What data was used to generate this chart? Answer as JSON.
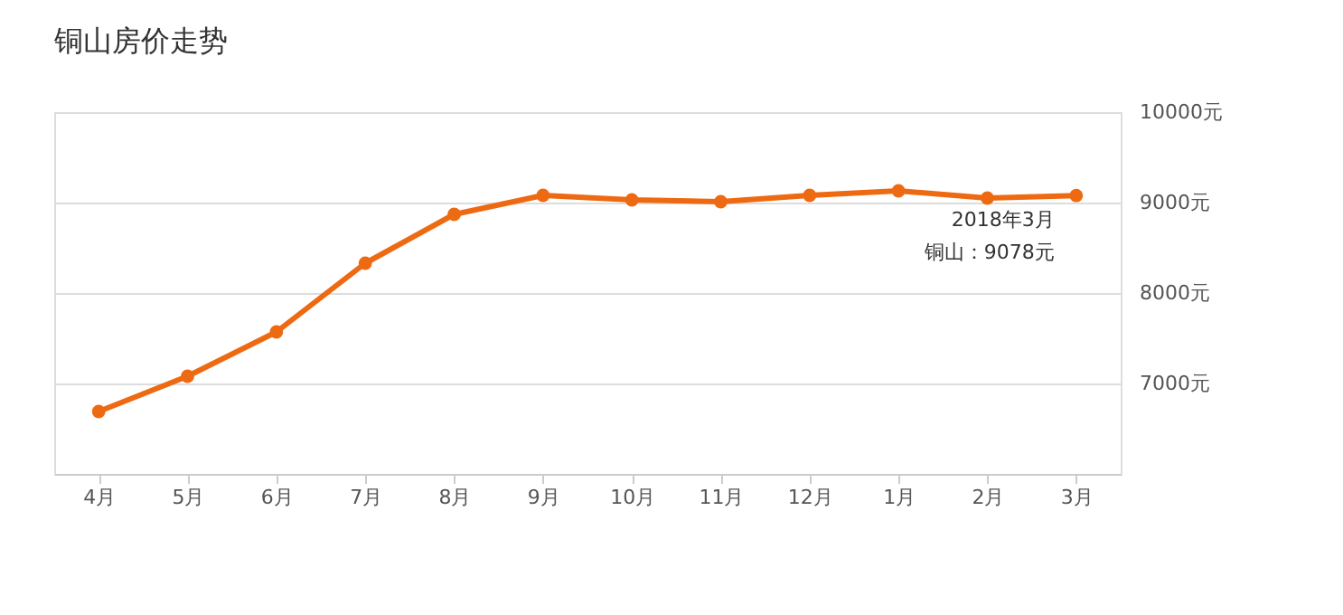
{
  "chart_data": {
    "type": "line",
    "title": "铜山房价走势",
    "categories": [
      "4月",
      "5月",
      "6月",
      "7月",
      "8月",
      "9月",
      "10月",
      "11月",
      "12月",
      "1月",
      "2月",
      "3月"
    ],
    "series": [
      {
        "color": "#ee6a12",
        "values": [
          6690,
          7080,
          7570,
          8330,
          8870,
          9080,
          9030,
          9010,
          9080,
          9130,
          9050,
          9078
        ]
      }
    ],
    "ylim": [
      6000,
      10000
    ],
    "yticks": [
      {
        "value": 6000,
        "label": null
      },
      {
        "value": 7000,
        "label": "7000元"
      },
      {
        "value": 8000,
        "label": "8000元"
      },
      {
        "value": 9000,
        "label": "9000元"
      },
      {
        "value": 10000,
        "label": "10000元"
      }
    ],
    "grid": "y",
    "marker": "circle",
    "line_style": "solid",
    "annotations": [
      {
        "text": "2018年3月",
        "x": "3月",
        "y": 9078
      },
      {
        "text": "铜山：9078元",
        "x": "3月",
        "y": 9078
      }
    ]
  }
}
